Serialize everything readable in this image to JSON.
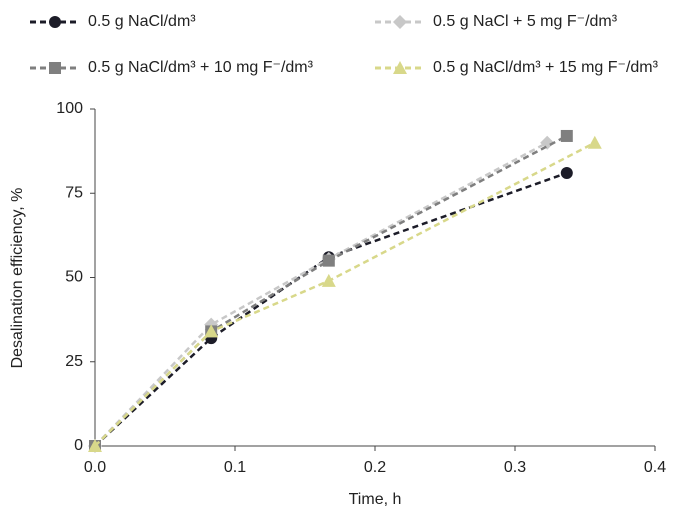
{
  "chart_data": {
    "type": "line",
    "x_label": "Time, h",
    "y_label": "Desalination efficiency, %",
    "xlim": [
      0,
      0.4
    ],
    "xticks": [
      {
        "value": 0,
        "label": "0.0"
      },
      0.1,
      0.2,
      0.3,
      0.4
    ],
    "ylim": [
      0,
      100
    ],
    "yticks": [
      0,
      25,
      50,
      75,
      100
    ],
    "grid": false,
    "series": [
      {
        "name": "0.5 g NaCl/dm³",
        "color": "#1c1c28",
        "marker": "circle",
        "x": [
          0,
          0.083,
          0.167,
          0.337
        ],
        "values": [
          0,
          32,
          56,
          81
        ]
      },
      {
        "name": "0.5 g NaCl + 5 mg F⁻/dm³",
        "color": "#c8c8c8",
        "marker": "diamond",
        "x": [
          0,
          0.083,
          0.167,
          0.323
        ],
        "values": [
          0,
          36,
          55.5,
          90
        ]
      },
      {
        "name": "0.5 g NaCl/dm³ + 10 mg F⁻/dm³",
        "color": "#7f7f7f",
        "marker": "square",
        "x": [
          0,
          0.083,
          0.167,
          0.337
        ],
        "values": [
          0,
          34,
          55,
          92
        ]
      },
      {
        "name": "0.5 g NaCl/dm³ + 15 mg F⁻/dm³",
        "color": "#d8d88a",
        "marker": "triangle",
        "x": [
          0,
          0.083,
          0.167,
          0.357
        ],
        "values": [
          0,
          34,
          49,
          90
        ]
      }
    ]
  }
}
